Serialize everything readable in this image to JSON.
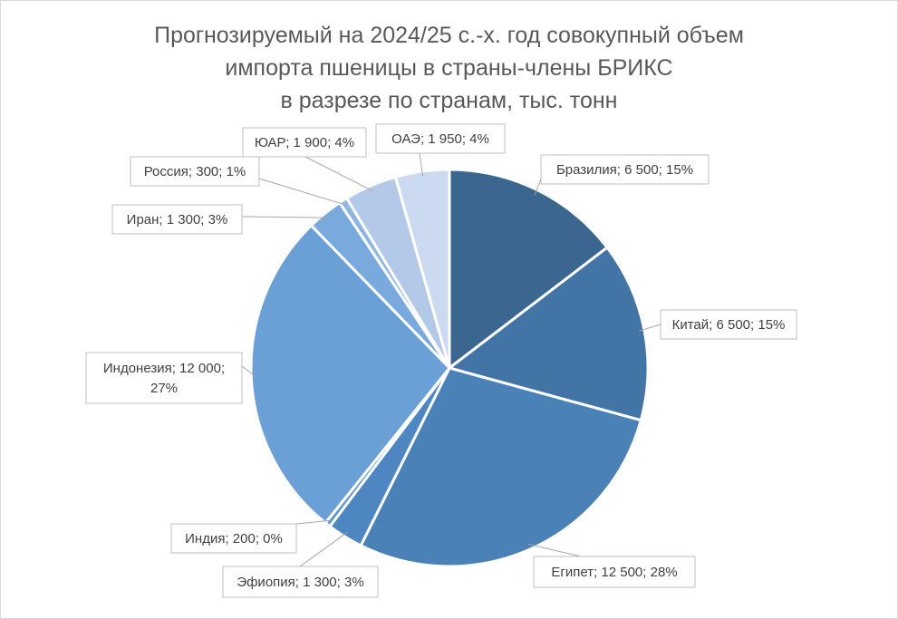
{
  "chart_data": {
    "type": "pie",
    "title_lines": [
      "Прогнозируемый на 2024/25 с.-х. год совокупный объем",
      "импорта пшеницы в страны-члены БРИКС",
      "в разрезе по странам, тыс. тонн"
    ],
    "slices": [
      {
        "name": "Бразилия",
        "value": 6500,
        "label": [
          "Бразилия; 6 500; 15%"
        ],
        "color": "#3b6690"
      },
      {
        "name": "Китай",
        "value": 6500,
        "label": [
          "Китай; 6 500; 15%"
        ],
        "color": "#4274a5"
      },
      {
        "name": "Египет",
        "value": 12500,
        "label": [
          "Египет; 12 500; 28%"
        ],
        "color": "#4a82b8"
      },
      {
        "name": "Эфиопия",
        "value": 1300,
        "label": [
          "Эфиопия; 1 300; 3%"
        ],
        "color": "#4d86c1"
      },
      {
        "name": "Индия",
        "value": 200,
        "label": [
          "Индия; 200; 0%"
        ],
        "color": "#5a94cc"
      },
      {
        "name": "Индонезия",
        "value": 12000,
        "label": [
          "Индонезия; 12 000;",
          "27%"
        ],
        "color": "#6aa0d6"
      },
      {
        "name": "Иран",
        "value": 1300,
        "label": [
          "Иран; 1 300; 3%"
        ],
        "color": "#7aa9de"
      },
      {
        "name": "Россия",
        "value": 300,
        "label": [
          "Россия; 300; 1%"
        ],
        "color": "#8fb5e1"
      },
      {
        "name": "ЮАР",
        "value": 1900,
        "label": [
          "ЮАР; 1 900; 4%"
        ],
        "color": "#b4c9e8"
      },
      {
        "name": "ОАЭ",
        "value": 1950,
        "label": [
          "ОАЭ; 1 950; 4%"
        ],
        "color": "#cbdaf0"
      }
    ],
    "start_angle_deg": 0,
    "direction": "clockwise",
    "data_labels": "callouts",
    "legend": "none"
  }
}
